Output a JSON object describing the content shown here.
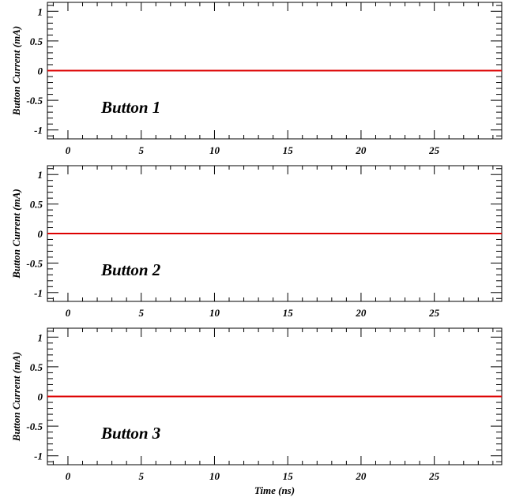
{
  "chart_data": [
    {
      "type": "line",
      "annotation": "Button 1",
      "ylabel": "Button Current (mA)",
      "xlabel": "",
      "xlim": [
        -1.4,
        29.6
      ],
      "ylim": [
        -1.15,
        1.15
      ],
      "xticks": [
        0,
        5,
        10,
        15,
        20,
        25
      ],
      "xtick_labels": [
        "0",
        "5",
        "10",
        "15",
        "20",
        "25"
      ],
      "yticks": [
        1,
        0.5,
        0,
        -0.5,
        -1
      ],
      "ytick_labels": [
        "1",
        "0.5",
        "0",
        "-0.5",
        "-1"
      ],
      "grid": false,
      "series": [
        {
          "color": "#dd0000",
          "x": [
            -1.4,
            29.6
          ],
          "y": [
            0,
            0
          ]
        }
      ]
    },
    {
      "type": "line",
      "annotation": "Button 2",
      "ylabel": "Button Current (mA)",
      "xlabel": "",
      "xlim": [
        -1.4,
        29.6
      ],
      "ylim": [
        -1.15,
        1.15
      ],
      "xticks": [
        0,
        5,
        10,
        15,
        20,
        25
      ],
      "xtick_labels": [
        "0",
        "5",
        "10",
        "15",
        "20",
        "25"
      ],
      "yticks": [
        1,
        0.5,
        0,
        -0.5,
        -1
      ],
      "ytick_labels": [
        "1",
        "0.5",
        "0",
        "-0.5",
        "-1"
      ],
      "grid": false,
      "series": [
        {
          "color": "#dd0000",
          "x": [
            -1.4,
            29.6
          ],
          "y": [
            0,
            0
          ]
        }
      ]
    },
    {
      "type": "line",
      "annotation": "Button 3",
      "ylabel": "Button Current (mA)",
      "xlabel": "Time (ns)",
      "xlim": [
        -1.4,
        29.6
      ],
      "ylim": [
        -1.15,
        1.15
      ],
      "xticks": [
        0,
        5,
        10,
        15,
        20,
        25
      ],
      "xtick_labels": [
        "0",
        "5",
        "10",
        "15",
        "20",
        "25"
      ],
      "yticks": [
        1,
        0.5,
        0,
        -0.5,
        -1
      ],
      "ytick_labels": [
        "1",
        "0.5",
        "0",
        "-0.5",
        "-1"
      ],
      "grid": false,
      "series": [
        {
          "color": "#dd0000",
          "x": [
            -1.4,
            29.6
          ],
          "y": [
            0,
            0
          ]
        }
      ]
    }
  ]
}
